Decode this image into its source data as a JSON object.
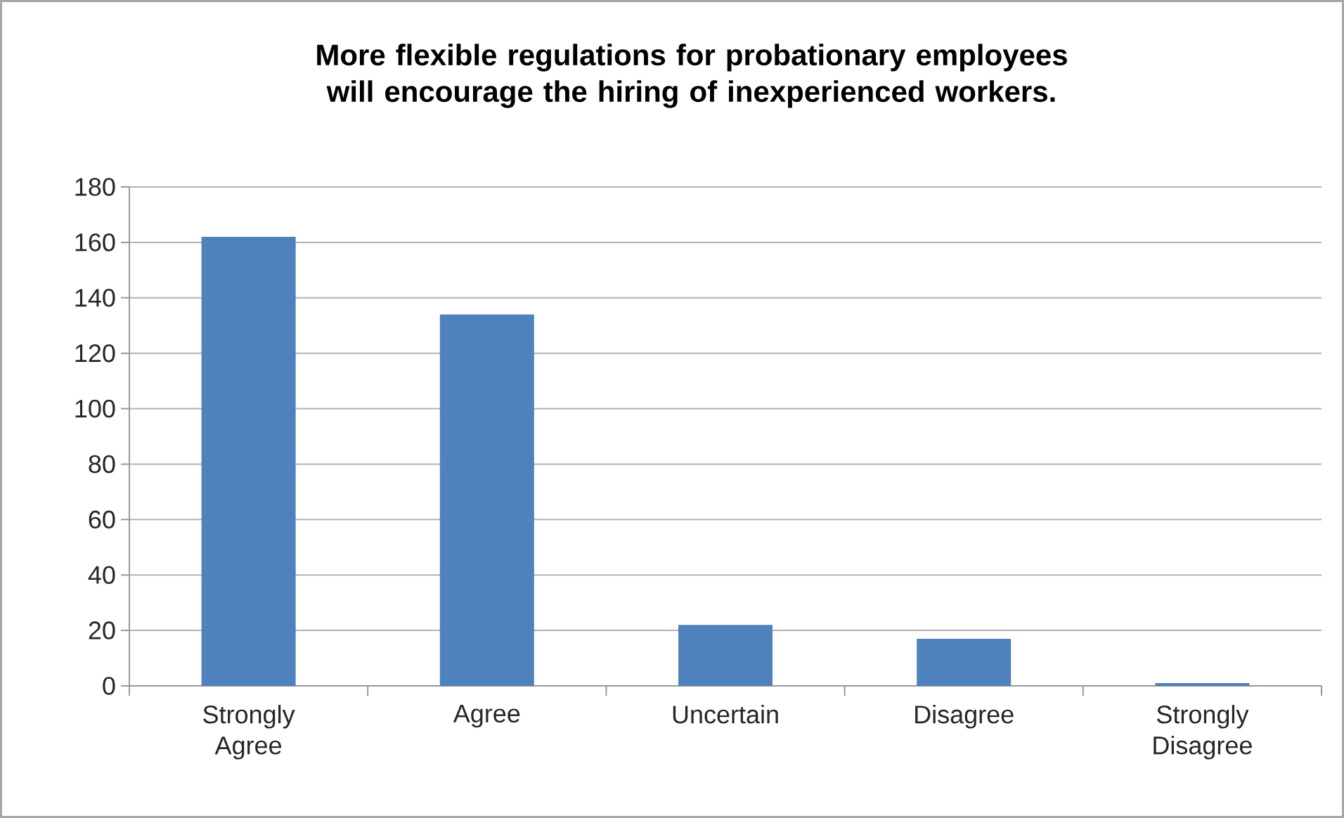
{
  "chart_data": {
    "type": "bar",
    "title": "More flexible regulations for probationary employees will encourage the hiring of inexperienced workers.",
    "categories": [
      "Strongly Agree",
      "Agree",
      "Uncertain",
      "Disagree",
      "Strongly Disagree"
    ],
    "values": [
      162,
      134,
      22,
      17,
      1
    ],
    "color": "#4f81bd",
    "ylim": [
      0,
      180
    ],
    "yticks": [
      0,
      20,
      40,
      60,
      80,
      100,
      120,
      140,
      160,
      180
    ],
    "grid": "y"
  }
}
